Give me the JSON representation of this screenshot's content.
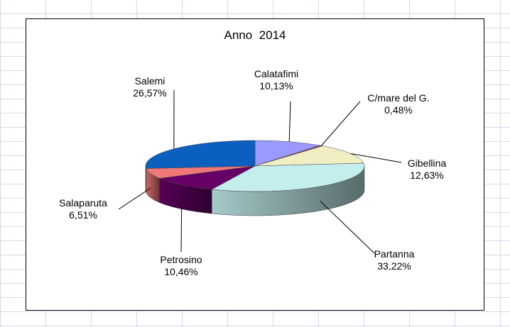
{
  "chart_data": {
    "type": "pie",
    "title": "Anno  2014",
    "slices": [
      {
        "label": "Calatafimi",
        "value": 10.13,
        "value_text": "10,13%",
        "color": "#9999ff"
      },
      {
        "label": "C/mare del G.",
        "value": 0.48,
        "value_text": "0,48%",
        "color": "#993366"
      },
      {
        "label": "Gibellina",
        "value": 12.63,
        "value_text": "12,63%",
        "color": "#f1eec4"
      },
      {
        "label": "Partanna",
        "value": 33.22,
        "value_text": "33,22%",
        "color": "#c4eeee"
      },
      {
        "label": "Petrosino",
        "value": 10.46,
        "value_text": "10,46%",
        "color": "#660066"
      },
      {
        "label": "Salaparuta",
        "value": 6.51,
        "value_text": "6,51%",
        "color": "#f07878"
      },
      {
        "label": "Salemi",
        "value": 26.57,
        "value_text": "26,57%",
        "color": "#0a5fbf"
      }
    ],
    "legend": "none",
    "style": "3d-pie"
  }
}
